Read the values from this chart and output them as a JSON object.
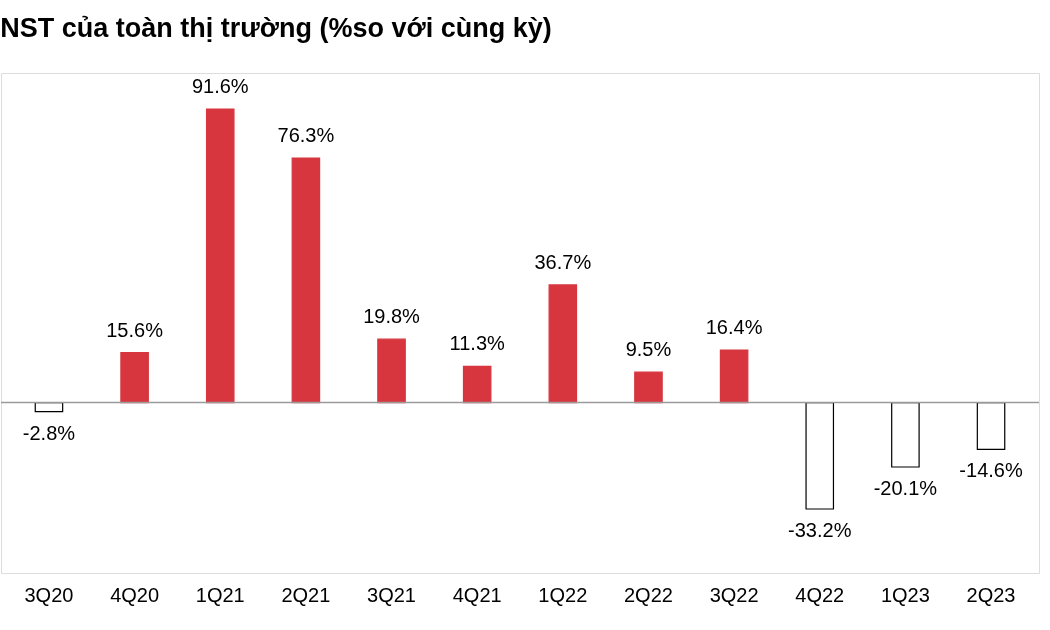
{
  "chart_data": {
    "type": "bar",
    "title": "NST của toàn thị trường (%so với cùng kỳ)",
    "categories": [
      "3Q20",
      "4Q20",
      "1Q21",
      "2Q21",
      "3Q21",
      "4Q21",
      "1Q22",
      "2Q22",
      "3Q22",
      "4Q22",
      "1Q23",
      "2Q23"
    ],
    "values": [
      -2.8,
      15.6,
      91.6,
      76.3,
      19.8,
      11.3,
      36.7,
      9.5,
      16.4,
      -33.2,
      -20.1,
      -14.6
    ],
    "value_labels": [
      "-2.8%",
      "15.6%",
      "91.6%",
      "76.3%",
      "19.8%",
      "11.3%",
      "36.7%",
      "9.5%",
      "16.4%",
      "-33.2%",
      "-20.1%",
      "-14.6%"
    ],
    "colors": [
      "#ffffff",
      "#d7363f",
      "#d7363f",
      "#d7363f",
      "#d7363f",
      "#d7363f",
      "#d7363f",
      "#d7363f",
      "#d7363f",
      "#ffffff",
      "#ffffff",
      "#ffffff"
    ],
    "grid": false
  }
}
